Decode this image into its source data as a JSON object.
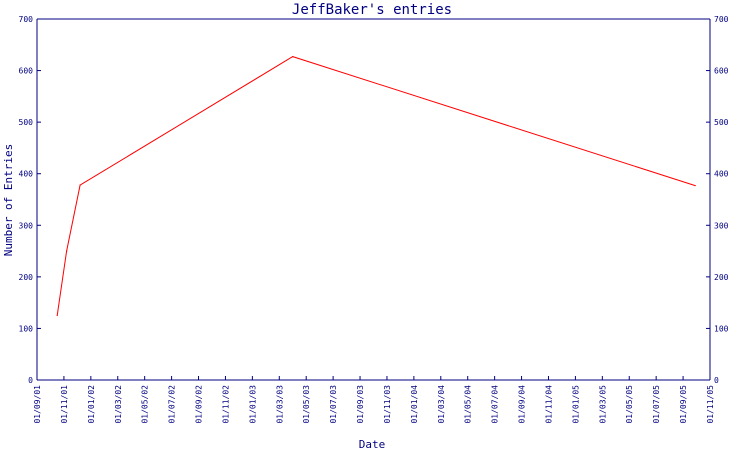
{
  "chart_data": {
    "type": "line",
    "title": "JeffBaker's entries",
    "xlabel": "Date",
    "ylabel": "Number of Entries",
    "ylim": [
      0,
      700
    ],
    "yticks": [
      0,
      100,
      200,
      300,
      400,
      500,
      600,
      700
    ],
    "y_axis_right": true,
    "grid": false,
    "x_tick_labels": [
      "01/09/01",
      "01/11/01",
      "01/01/02",
      "01/03/02",
      "01/05/02",
      "01/07/02",
      "01/09/02",
      "01/11/02",
      "01/01/03",
      "01/03/03",
      "01/05/03",
      "01/07/03",
      "01/09/03",
      "01/11/03",
      "01/01/04",
      "01/03/04",
      "01/05/04",
      "01/07/04",
      "01/09/04",
      "01/11/04",
      "01/01/05",
      "01/03/05",
      "01/05/05",
      "01/07/05",
      "01/09/05",
      "01/11/05"
    ],
    "series": [
      {
        "color": "#ff0000",
        "x": [
          0.75,
          1.1,
          1.6,
          9.5,
          24.45
        ],
        "y": [
          125,
          250,
          378,
          627,
          377
        ]
      }
    ],
    "colors": {
      "axis": "#000080",
      "text": "#000080",
      "line": "#ff0000",
      "background": "#ffffff"
    }
  }
}
